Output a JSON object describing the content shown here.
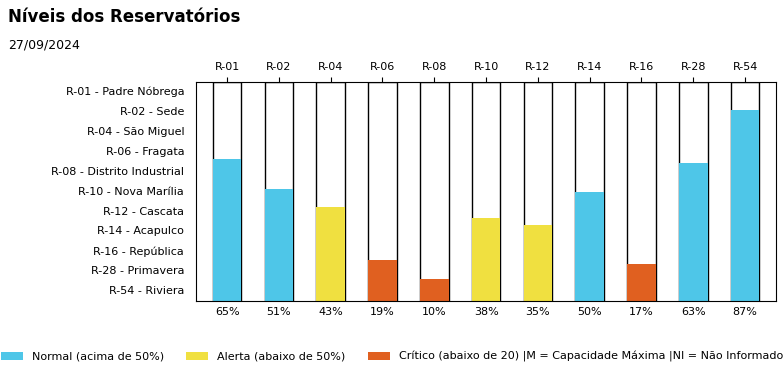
{
  "chart_data": {
    "type": "bar",
    "title": "Níveis dos Reservatórios",
    "subtitle": "27/09/2024",
    "categories": [
      "R-01",
      "R-02",
      "R-04",
      "R-06",
      "R-08",
      "R-10",
      "R-12",
      "R-14",
      "R-16",
      "R-28",
      "R-54"
    ],
    "series": [
      {
        "name": "Normal (acima de 50%)",
        "color": "#4ec6e8",
        "values": [
          65,
          51,
          null,
          null,
          null,
          null,
          null,
          50,
          null,
          63,
          87
        ],
        "value_labels": [
          "65%",
          "51%",
          null,
          null,
          null,
          null,
          null,
          "50%",
          null,
          "63%",
          "87%"
        ]
      },
      {
        "name": "Alerta (abaixo de 50%)",
        "color": "#f0e040",
        "values": [
          null,
          null,
          43,
          null,
          null,
          38,
          35,
          null,
          null,
          null,
          null
        ],
        "value_labels": [
          null,
          null,
          "43%",
          null,
          null,
          "38%",
          "35%",
          null,
          null,
          null,
          null
        ]
      },
      {
        "name": "Crítico (abaixo de 20) |M = Capacidade Máxima |NI = Não Informado",
        "color": "#e06020",
        "values": [
          null,
          null,
          null,
          19,
          10,
          null,
          null,
          null,
          17,
          null,
          null
        ],
        "value_labels": [
          null,
          null,
          null,
          "19%",
          "10%",
          null,
          null,
          null,
          "17%",
          null,
          null
        ]
      }
    ],
    "max_value": 100,
    "annotations": [
      "R-01 - Padre Nóbrega",
      "R-02 - Sede",
      "R-04 - São Miguel",
      "R-06 - Fragata",
      "R-08 - Distrito Industrial",
      "R-10 - Nova Marília",
      "R-12 - Cascata",
      "R-14 - Acapulco",
      "R-16 - República",
      "R-28 - Primavera",
      "R-54 - Riviera"
    ],
    "ylim": [
      0,
      100
    ],
    "tick_labels": "x",
    "data_labels": true,
    "legend": "lower center"
  }
}
